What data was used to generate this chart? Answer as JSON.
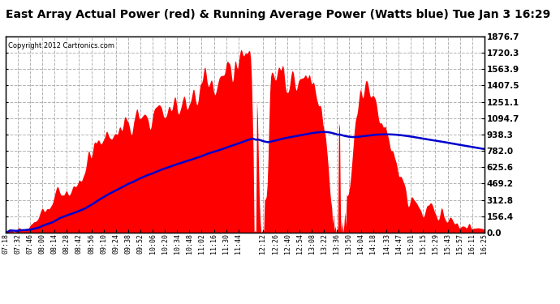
{
  "title": "East Array Actual Power (red) & Running Average Power (Watts blue) Tue Jan 3 16:29",
  "copyright": "Copyright 2012 Cartronics.com",
  "yticks": [
    0.0,
    156.4,
    312.8,
    469.2,
    625.6,
    782.0,
    938.3,
    1094.7,
    1251.1,
    1407.5,
    1563.9,
    1720.3,
    1876.7
  ],
  "ymax": 1876.7,
  "ymin": 0.0,
  "bg_color": "#ffffff",
  "plot_bg_color": "#ffffff",
  "grid_color": "#aaaaaa",
  "fill_color": "#ff0000",
  "line_color": "#0000cc",
  "title_fontsize": 10,
  "xtick_labels": [
    "07:18",
    "07:32",
    "07:46",
    "08:00",
    "08:14",
    "08:28",
    "08:42",
    "08:56",
    "09:10",
    "09:24",
    "09:38",
    "09:52",
    "10:06",
    "10:20",
    "10:34",
    "10:48",
    "11:02",
    "11:16",
    "11:30",
    "11:44",
    "12:12",
    "12:26",
    "12:40",
    "12:54",
    "13:08",
    "13:22",
    "13:36",
    "13:50",
    "14:04",
    "14:18",
    "14:33",
    "14:47",
    "15:01",
    "15:15",
    "15:29",
    "15:43",
    "15:57",
    "16:11",
    "16:25"
  ]
}
